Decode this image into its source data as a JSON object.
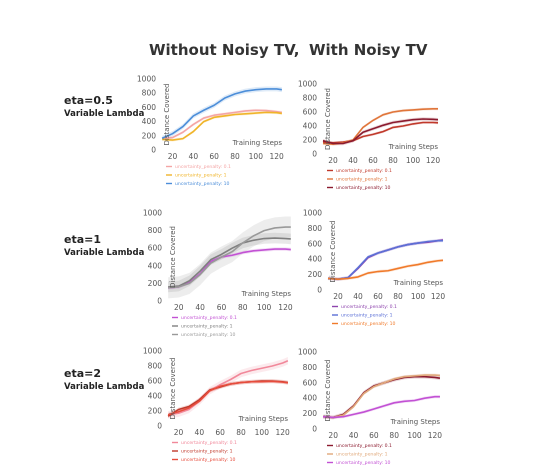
{
  "column_titles": [
    "Without Noisy TV,",
    "With Noisy TV"
  ],
  "rows": [
    {
      "eta": "eta=0.5",
      "lambda": "Variable Lambda"
    },
    {
      "eta": "eta=1",
      "lambda": "Variable Lambda"
    },
    {
      "eta": "eta=2",
      "lambda": "Variable Lambda"
    }
  ],
  "chart_data": [
    {
      "type": "line",
      "title": "",
      "xlabel": "Training Steps",
      "ylabel": "Distance Covered",
      "xlim": [
        8,
        128
      ],
      "ylim": [
        0,
        1000
      ],
      "xticks": [
        20,
        40,
        60,
        80,
        100,
        120
      ],
      "yticks": [
        0,
        200,
        400,
        600,
        800,
        1000
      ],
      "grid": false,
      "legend": "below",
      "x": [
        10,
        20,
        30,
        40,
        50,
        60,
        70,
        80,
        90,
        100,
        110,
        120,
        125
      ],
      "series": [
        {
          "name": "uncertainty_penalty: 0.1",
          "color": "#f4a5a5",
          "values": [
            160,
            175,
            250,
            360,
            450,
            490,
            510,
            530,
            550,
            560,
            555,
            540,
            530
          ],
          "band": 20
        },
        {
          "name": "uncertainty_penalty: 1",
          "color": "#f0b429",
          "values": [
            150,
            140,
            160,
            260,
            400,
            460,
            480,
            500,
            510,
            520,
            530,
            525,
            515
          ],
          "band": 20
        },
        {
          "name": "uncertainty_penalty: 10",
          "color": "#4c8ed9",
          "values": [
            165,
            230,
            330,
            480,
            560,
            630,
            730,
            790,
            830,
            850,
            860,
            860,
            850
          ],
          "band": 35
        }
      ]
    },
    {
      "type": "line",
      "title": "",
      "xlabel": "Training Steps",
      "ylabel": "Distance Covered",
      "xlim": [
        8,
        128
      ],
      "ylim": [
        0,
        1000
      ],
      "xticks": [
        20,
        40,
        60,
        80,
        100,
        120
      ],
      "yticks": [
        0,
        200,
        400,
        600,
        800,
        1000
      ],
      "grid": false,
      "legend": "below",
      "x": [
        10,
        20,
        30,
        40,
        50,
        60,
        70,
        80,
        90,
        100,
        110,
        120,
        125
      ],
      "series": [
        {
          "name": "uncertainty_penalty: 0.1",
          "color": "#c0392b",
          "values": [
            170,
            160,
            170,
            190,
            250,
            280,
            320,
            380,
            400,
            430,
            450,
            450,
            445
          ],
          "band": 20
        },
        {
          "name": "uncertainty_penalty: 1",
          "color": "#e0753a",
          "values": [
            150,
            140,
            160,
            200,
            380,
            480,
            560,
            600,
            620,
            630,
            640,
            645,
            645
          ],
          "band": 20
        },
        {
          "name": "uncertainty_penalty: 10",
          "color": "#8b1a2e",
          "values": [
            190,
            150,
            150,
            190,
            310,
            360,
            410,
            450,
            470,
            490,
            500,
            495,
            490
          ],
          "band": 25
        }
      ]
    },
    {
      "type": "line",
      "title": "",
      "xlabel": "Training Steps",
      "ylabel": "Distance Covered",
      "xlim": [
        8,
        128
      ],
      "ylim": [
        0,
        1000
      ],
      "xticks": [
        20,
        40,
        60,
        80,
        100,
        120
      ],
      "yticks": [
        0,
        200,
        400,
        600,
        800,
        1000
      ],
      "grid": false,
      "legend": "below",
      "x": [
        10,
        20,
        30,
        40,
        50,
        60,
        70,
        80,
        90,
        100,
        110,
        120,
        125
      ],
      "series": [
        {
          "name": "uncertainty_penalty: 0.1",
          "color": "#c251d4",
          "values": [
            150,
            160,
            210,
            310,
            450,
            500,
            520,
            550,
            570,
            580,
            590,
            590,
            585
          ],
          "band": 20
        },
        {
          "name": "uncertainty_penalty: 1",
          "color": "#7f7f7f",
          "values": [
            160,
            170,
            230,
            340,
            470,
            530,
            600,
            660,
            690,
            710,
            715,
            710,
            705
          ],
          "band": 60
        },
        {
          "name": "uncertainty_penalty: 10",
          "color": "#999999",
          "values": [
            150,
            160,
            200,
            300,
            430,
            500,
            560,
            660,
            740,
            800,
            830,
            840,
            840
          ],
          "band": 120
        }
      ]
    },
    {
      "type": "line",
      "title": "",
      "xlabel": "Training Steps",
      "ylabel": "Distance Covered",
      "xlim": [
        8,
        128
      ],
      "ylim": [
        0,
        1000
      ],
      "xticks": [
        20,
        40,
        60,
        80,
        100,
        120
      ],
      "yticks": [
        0,
        200,
        400,
        600,
        800,
        1000
      ],
      "grid": false,
      "legend": "below",
      "x": [
        10,
        20,
        30,
        40,
        50,
        60,
        70,
        80,
        90,
        100,
        110,
        120,
        125
      ],
      "series": [
        {
          "name": "uncertainty_penalty: 0.1",
          "color": "#8e44ad",
          "values": [
            150,
            140,
            160,
            280,
            420,
            480,
            520,
            560,
            590,
            610,
            620,
            640,
            650
          ],
          "band": 20
        },
        {
          "name": "uncertainty_penalty: 1",
          "color": "#5b6fd6",
          "values": [
            150,
            140,
            160,
            290,
            430,
            480,
            520,
            560,
            590,
            610,
            630,
            640,
            640
          ],
          "band": 20
        },
        {
          "name": "uncertainty_penalty: 10",
          "color": "#f07a2a",
          "values": [
            150,
            140,
            150,
            170,
            220,
            240,
            250,
            280,
            310,
            330,
            360,
            380,
            385
          ],
          "band": 20
        }
      ]
    },
    {
      "type": "line",
      "title": "",
      "xlabel": "Training Steps",
      "ylabel": "Distance Covered",
      "xlim": [
        8,
        128
      ],
      "ylim": [
        0,
        1000
      ],
      "xticks": [
        20,
        40,
        60,
        80,
        100,
        120
      ],
      "yticks": [
        0,
        200,
        400,
        600,
        800,
        1000
      ],
      "grid": false,
      "legend": "below",
      "x": [
        10,
        20,
        30,
        40,
        50,
        60,
        70,
        80,
        90,
        100,
        110,
        120,
        125
      ],
      "series": [
        {
          "name": "uncertainty_penalty: 0.1",
          "color": "#f1889a",
          "values": [
            150,
            170,
            220,
            330,
            470,
            550,
            620,
            700,
            740,
            770,
            800,
            840,
            870
          ],
          "band": 50
        },
        {
          "name": "uncertainty_penalty: 1",
          "color": "#c0392b",
          "values": [
            130,
            220,
            260,
            350,
            480,
            520,
            560,
            580,
            590,
            600,
            600,
            590,
            580
          ],
          "band": 25
        },
        {
          "name": "uncertainty_penalty: 10",
          "color": "#e74c3c",
          "values": [
            150,
            190,
            240,
            330,
            470,
            530,
            560,
            580,
            590,
            590,
            595,
            585,
            575
          ],
          "band": 25
        }
      ]
    },
    {
      "type": "line",
      "title": "",
      "xlabel": "Training Steps",
      "ylabel": "Distance Covered",
      "xlim": [
        8,
        128
      ],
      "ylim": [
        0,
        1000
      ],
      "xticks": [
        20,
        40,
        60,
        80,
        100,
        120
      ],
      "yticks": [
        0,
        200,
        400,
        600,
        800,
        1000
      ],
      "grid": false,
      "legend": "below",
      "x": [
        10,
        20,
        30,
        40,
        50,
        60,
        70,
        80,
        90,
        100,
        110,
        120,
        125
      ],
      "series": [
        {
          "name": "uncertainty_penalty: 0.1",
          "color": "#8b1a2e",
          "values": [
            160,
            150,
            190,
            300,
            470,
            560,
            600,
            640,
            670,
            680,
            680,
            670,
            660
          ],
          "band": 25
        },
        {
          "name": "uncertainty_penalty: 1",
          "color": "#e0a87a",
          "values": [
            160,
            150,
            180,
            290,
            460,
            550,
            600,
            650,
            680,
            690,
            700,
            700,
            695
          ],
          "band": 20
        },
        {
          "name": "uncertainty_penalty: 10",
          "color": "#c251d4",
          "values": [
            160,
            150,
            160,
            190,
            220,
            260,
            300,
            340,
            360,
            370,
            400,
            420,
            420
          ],
          "band": 20
        }
      ]
    }
  ]
}
